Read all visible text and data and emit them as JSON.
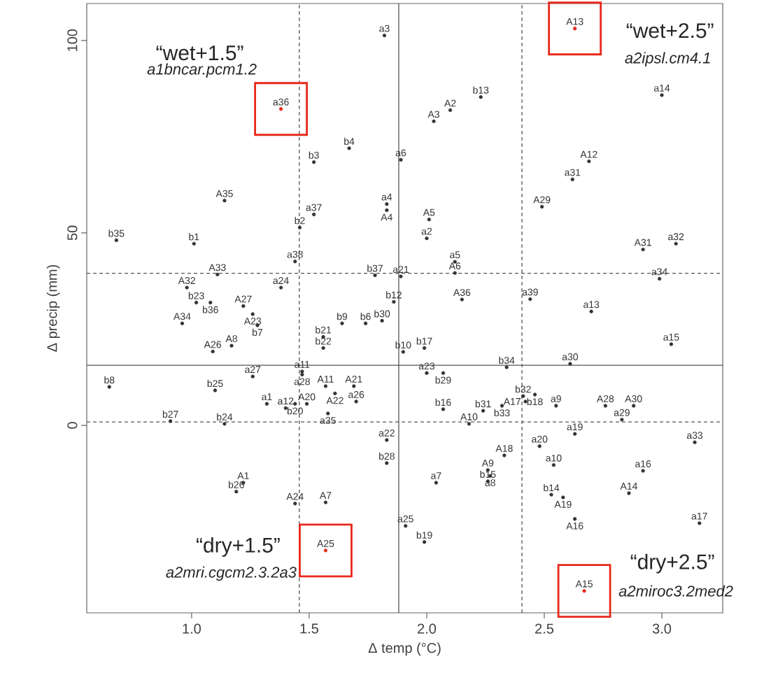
{
  "chart_data": {
    "type": "scatter",
    "xlabel": "Δ temp (°C)",
    "ylabel": "Δ precip (mm)",
    "xlim": [
      0.554,
      3.259
    ],
    "ylim": [
      -48.7,
      109.6
    ],
    "xticks": [
      {
        "value": 1,
        "label": "1.0"
      },
      {
        "value": 1.5,
        "label": "1.5"
      },
      {
        "value": 2,
        "label": "2.0"
      },
      {
        "value": 2.5,
        "label": "2.5"
      },
      {
        "value": 3,
        "label": "3.0"
      }
    ],
    "yticks": [
      0,
      50,
      100
    ],
    "ref_lines": [
      {
        "axis": "x",
        "value": 1.458,
        "line_style": "dashed",
        "color": "#555555"
      },
      {
        "axis": "x",
        "value": 1.881,
        "line_style": "solid",
        "color": "#555555"
      },
      {
        "axis": "x",
        "value": 2.405,
        "line_style": "dashed",
        "color": "#555555"
      },
      {
        "axis": "y",
        "value": 39.5,
        "line_style": "dashed",
        "color": "#555555"
      },
      {
        "axis": "y",
        "value": 15.6,
        "line_style": "solid",
        "color": "#555555"
      },
      {
        "axis": "y",
        "value": 0.9,
        "line_style": "dashed",
        "color": "#555555"
      }
    ],
    "annotations": [
      "“wet+1.5”",
      "a1bncar.pcm1.2",
      "“wet+2.5”",
      "a2ipsl.cm4.1",
      "“dry+1.5”",
      "a2mri.cgcm2.3.2a3",
      "“dry+2.5”",
      "a2miroc3.2med2"
    ],
    "series": [
      {
        "color": "#333333",
        "x": [
          1.82,
          2.23,
          2.1,
          2.03,
          3.0,
          1.67,
          1.52,
          1.89,
          2.69,
          2.62,
          1.14,
          2.49,
          1.83,
          1.83,
          1.52,
          2.01,
          1.46,
          0.68,
          1.01,
          2.0,
          3.06,
          2.92,
          1.44,
          2.12,
          2.12,
          1.11,
          1.78,
          1.89,
          2.99,
          0.98,
          1.38,
          1.02,
          1.08,
          1.22,
          2.15,
          1.86,
          2.44,
          2.7,
          1.26,
          0.96,
          1.28,
          1.64,
          1.74,
          1.81,
          1.56,
          3.04,
          1.56,
          1.17,
          1.09,
          1.99,
          1.9,
          2.61,
          2.34,
          1.26,
          1.47,
          1.47,
          2.0,
          2.07,
          0.65,
          1.57,
          1.69,
          1.61,
          1.1,
          1.7,
          2.41,
          2.46,
          2.42,
          1.32,
          1.4,
          1.44,
          1.49,
          2.55,
          2.76,
          2.88,
          2.07,
          2.24,
          2.32,
          1.58,
          0.91,
          1.14,
          2.83,
          2.18,
          2.63,
          3.14,
          1.83,
          2.48,
          2.33,
          1.83,
          2.54,
          2.92,
          2.26,
          2.27,
          2.26,
          2.04,
          1.22,
          1.19,
          2.86,
          2.53,
          2.58,
          1.44,
          1.57,
          2.63,
          3.16,
          1.91,
          1.99
        ],
        "values": [
          101.3,
          85.3,
          81.9,
          79.0,
          85.8,
          72.0,
          68.4,
          69.0,
          68.6,
          63.9,
          58.4,
          56.8,
          57.5,
          55.9,
          54.8,
          53.5,
          51.4,
          48.1,
          47.2,
          48.6,
          47.2,
          45.7,
          42.6,
          42.5,
          39.6,
          39.2,
          39.0,
          38.7,
          38.1,
          35.8,
          35.8,
          31.9,
          31.9,
          31.0,
          32.7,
          32.1,
          32.8,
          29.6,
          28.9,
          26.5,
          26.0,
          26.5,
          26.5,
          27.2,
          23.0,
          21.1,
          20.1,
          20.7,
          19.2,
          20.1,
          19.1,
          16.0,
          15.1,
          12.7,
          14.0,
          13.2,
          13.6,
          13.6,
          10.0,
          10.2,
          10.2,
          8.3,
          9.1,
          6.2,
          7.6,
          8.0,
          6.2,
          5.6,
          4.5,
          5.6,
          5.6,
          5.1,
          5.1,
          5.1,
          4.2,
          3.8,
          5.1,
          3.1,
          1.1,
          0.4,
          1.5,
          0.4,
          -2.2,
          -4.4,
          -3.8,
          -5.4,
          -7.8,
          -9.8,
          -10.3,
          -11.8,
          -11.6,
          -13.1,
          -14.5,
          -14.9,
          -14.9,
          -17.2,
          -17.6,
          -18.0,
          -18.7,
          -20.3,
          -20.0,
          -24.3,
          -25.4,
          -26.1,
          -30.3
        ],
        "value_labels": [
          "a3",
          "b13",
          "A2",
          "A3",
          "a14",
          "b4",
          "b3",
          "a6",
          "A12",
          "a31",
          "A35",
          "A29",
          "a4",
          "A4",
          "a37",
          "A5",
          "b2",
          "b35",
          "b1",
          "a2",
          "a32",
          "A31",
          "a38",
          "a5",
          "A6",
          "A33",
          "b37",
          "a21",
          "a34",
          "A32",
          "a24",
          "b23",
          "b36",
          "A27",
          "A36",
          "b12",
          "a39",
          "a13",
          "A23",
          "A34",
          "b7",
          "b9",
          "b6",
          "b30",
          "b21",
          "a15",
          "b22",
          "A8",
          "A26",
          "b17",
          "b10",
          "a30",
          "b34",
          "a27",
          "a11",
          "a28",
          "a23",
          "b29",
          "b8",
          "A11",
          "A21",
          "A22",
          "b25",
          "a26",
          "b32",
          "b18",
          "A17",
          "a1",
          "a12",
          "b20",
          "A20",
          "a9",
          "A28",
          "A30",
          "b16",
          "b31",
          "b33",
          "a35",
          "b27",
          "b24",
          "a29",
          "A10",
          "a19",
          "a33",
          "a22",
          "a20",
          "A18",
          "b28",
          "a10",
          "a16",
          "A9",
          "a8",
          "b15",
          "a7",
          "A1",
          "b26",
          "A14",
          "b14",
          "A19",
          "A24",
          "A7",
          "A16",
          "a17",
          "a25",
          "b19"
        ]
      },
      {
        "color": "#e8291c",
        "x": [
          1.38,
          2.63,
          1.57,
          2.67
        ],
        "values": [
          82.2,
          103.1,
          -32.5,
          -43.0
        ],
        "value_labels": [
          "a36",
          "A13",
          "A25",
          "A15"
        ]
      }
    ]
  }
}
